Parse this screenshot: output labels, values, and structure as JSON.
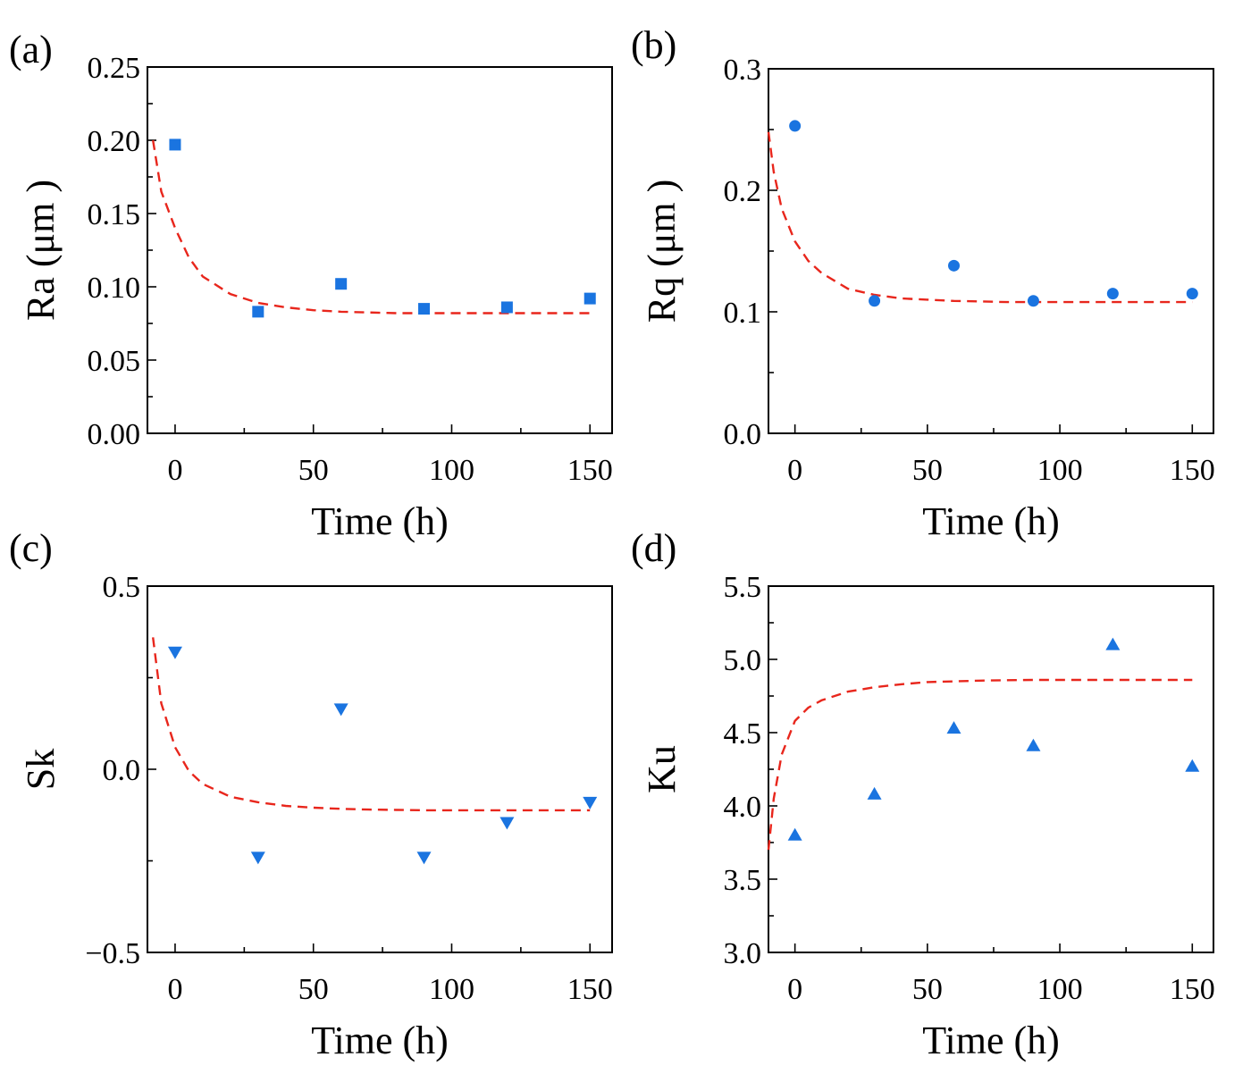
{
  "figure": {
    "marker_color": "#1a74e0",
    "fit_color": "#e8261c"
  },
  "chart_data": [
    {
      "type": "scatter",
      "panel_label": "(a)",
      "xlabel": "Time (h)",
      "ylabel": "Ra (μm )",
      "marker": "square",
      "xlim": [
        -10,
        158
      ],
      "ylim": [
        0.0,
        0.25
      ],
      "xticks": [
        0,
        50,
        100,
        150
      ],
      "xtick_labels": [
        "0",
        "50",
        "100",
        "150"
      ],
      "yticks": [
        0.0,
        0.05,
        0.1,
        0.15,
        0.2,
        0.25
      ],
      "ytick_labels": [
        "0.00",
        "0.05",
        "0.10",
        "0.15",
        "0.20",
        "0.25"
      ],
      "x": [
        0,
        30,
        60,
        90,
        120,
        150
      ],
      "y": [
        0.197,
        0.083,
        0.102,
        0.085,
        0.086,
        0.092
      ],
      "fit": {
        "x": [
          -8,
          -5,
          0,
          5,
          10,
          20,
          30,
          40,
          50,
          60,
          70,
          80,
          90,
          100,
          110,
          120,
          130,
          140,
          150
        ],
        "y": [
          0.2,
          0.165,
          0.14,
          0.12,
          0.107,
          0.095,
          0.089,
          0.086,
          0.084,
          0.083,
          0.0825,
          0.082,
          0.082,
          0.082,
          0.082,
          0.082,
          0.082,
          0.082,
          0.082
        ]
      }
    },
    {
      "type": "scatter",
      "panel_label": "(b)",
      "xlabel": "Time (h)",
      "ylabel": "Rq (μm )",
      "marker": "circle",
      "xlim": [
        -10,
        158
      ],
      "ylim": [
        0.0,
        0.3
      ],
      "xticks": [
        0,
        50,
        100,
        150
      ],
      "xtick_labels": [
        "0",
        "50",
        "100",
        "150"
      ],
      "yticks": [
        0.0,
        0.1,
        0.2,
        0.3
      ],
      "ytick_labels": [
        "0.0",
        "0.1",
        "0.2",
        "0.3"
      ],
      "minor_yticks": [
        0.05,
        0.15,
        0.25
      ],
      "x": [
        0,
        30,
        60,
        90,
        120,
        150
      ],
      "y": [
        0.253,
        0.109,
        0.138,
        0.109,
        0.115,
        0.115
      ],
      "fit": {
        "x": [
          -10,
          -8,
          -5,
          0,
          5,
          10,
          20,
          30,
          40,
          50,
          60,
          70,
          80,
          90,
          100,
          110,
          120,
          130,
          140,
          150
        ],
        "y": [
          0.248,
          0.215,
          0.185,
          0.158,
          0.142,
          0.132,
          0.119,
          0.114,
          0.111,
          0.11,
          0.109,
          0.1085,
          0.108,
          0.108,
          0.108,
          0.108,
          0.108,
          0.108,
          0.108,
          0.108
        ]
      }
    },
    {
      "type": "scatter",
      "panel_label": "(c)",
      "xlabel": "Time (h)",
      "ylabel": "Sk",
      "marker": "triangle-down",
      "xlim": [
        -10,
        158
      ],
      "ylim": [
        -0.5,
        0.5
      ],
      "xticks": [
        0,
        50,
        100,
        150
      ],
      "xtick_labels": [
        "0",
        "50",
        "100",
        "150"
      ],
      "yticks": [
        -0.5,
        0.0,
        0.5
      ],
      "ytick_labels": [
        "−0.5",
        "0.0",
        "0.5"
      ],
      "minor_yticks": [
        -0.25,
        0.25
      ],
      "x": [
        0,
        30,
        60,
        90,
        120,
        150
      ],
      "y": [
        0.32,
        -0.24,
        0.165,
        -0.24,
        -0.145,
        -0.09
      ],
      "fit": {
        "x": [
          -8,
          -5,
          0,
          5,
          10,
          20,
          30,
          40,
          50,
          60,
          70,
          80,
          90,
          100,
          110,
          120,
          130,
          140,
          150
        ],
        "y": [
          0.36,
          0.18,
          0.06,
          -0.005,
          -0.04,
          -0.075,
          -0.09,
          -0.1,
          -0.105,
          -0.108,
          -0.11,
          -0.111,
          -0.112,
          -0.112,
          -0.112,
          -0.112,
          -0.112,
          -0.112,
          -0.112
        ]
      }
    },
    {
      "type": "scatter",
      "panel_label": "(d)",
      "xlabel": "Time (h)",
      "ylabel": "Ku",
      "marker": "triangle-up",
      "xlim": [
        -10,
        158
      ],
      "ylim": [
        3.0,
        5.5
      ],
      "xticks": [
        0,
        50,
        100,
        150
      ],
      "xtick_labels": [
        "0",
        "50",
        "100",
        "150"
      ],
      "yticks": [
        3.0,
        3.5,
        4.0,
        4.5,
        5.0,
        5.5
      ],
      "ytick_labels": [
        "3.0",
        "3.5",
        "4.0",
        "4.5",
        "5.0",
        "5.5"
      ],
      "x": [
        0,
        30,
        60,
        90,
        120,
        150
      ],
      "y": [
        3.8,
        4.08,
        4.53,
        4.41,
        5.1,
        4.27
      ],
      "fit": {
        "x": [
          -10,
          -8,
          -5,
          0,
          5,
          10,
          20,
          30,
          40,
          50,
          60,
          70,
          80,
          90,
          100,
          110,
          120,
          130,
          140,
          150
        ],
        "y": [
          3.7,
          4.05,
          4.35,
          4.58,
          4.67,
          4.72,
          4.78,
          4.81,
          4.83,
          4.845,
          4.85,
          4.855,
          4.858,
          4.86,
          4.86,
          4.86,
          4.86,
          4.86,
          4.86,
          4.86
        ]
      }
    }
  ]
}
